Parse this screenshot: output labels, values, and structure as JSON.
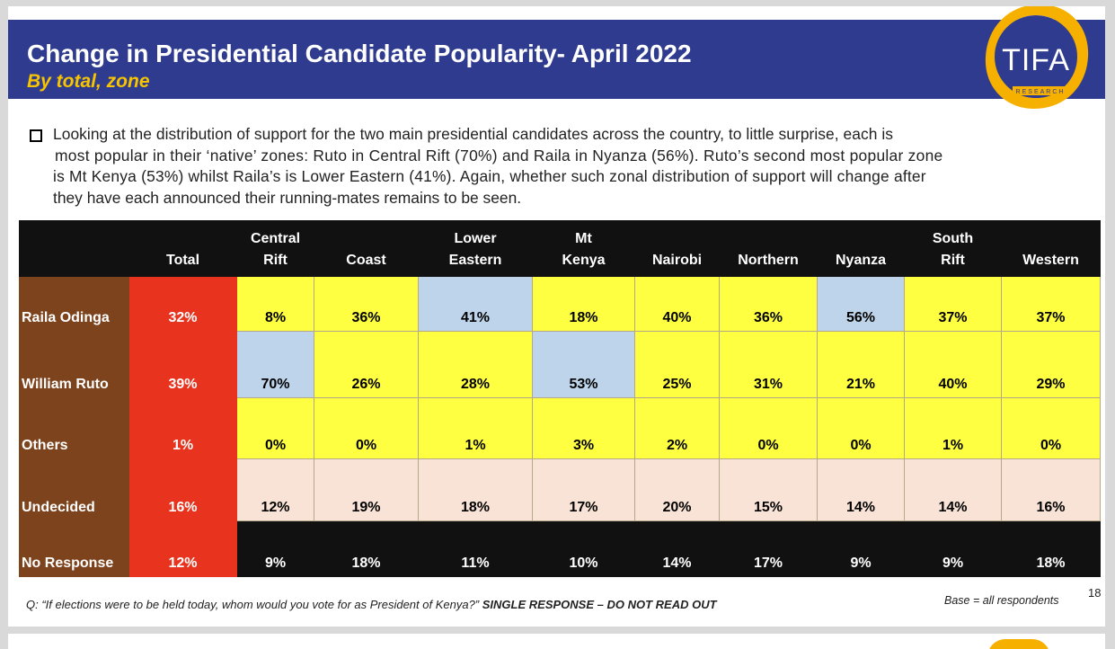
{
  "header": {
    "title": "Change in Presidential Candidate Popularity- April 2022",
    "subtitle": "By total, zone",
    "logo_text": "TIFA",
    "logo_subtext": "RESEARCH"
  },
  "summary": {
    "lines": [
      "Looking at the distribution of support for the two main presidential candidates across the country, to little surprise, each is",
      "most popular in their ‘native’ zones: Ruto in Central Rift (70%) and Raila in Nyanza (56%).  Ruto’s second most popular zone",
      "is Mt Kenya (53%) whilst Raila’s is Lower Eastern (41%). Again, whether such zonal distribution of support will change after",
      "they have each announced their running-mates remains to be seen."
    ]
  },
  "table": {
    "columns": [
      {
        "line1": "",
        "line2": "Total"
      },
      {
        "line1": "Central",
        "line2": "Rift"
      },
      {
        "line1": "",
        "line2": "Coast"
      },
      {
        "line1": "Lower",
        "line2": "Eastern"
      },
      {
        "line1": "Mt",
        "line2": "Kenya"
      },
      {
        "line1": "",
        "line2": "Nairobi"
      },
      {
        "line1": "",
        "line2": "Northern"
      },
      {
        "line1": "",
        "line2": "Nyanza"
      },
      {
        "line1": "South",
        "line2": "Rift"
      },
      {
        "line1": "",
        "line2": "Western"
      }
    ],
    "rows": [
      {
        "label": "Raila Odinga",
        "values": [
          "32%",
          "8%",
          "36%",
          "41%",
          "18%",
          "40%",
          "36%",
          "56%",
          "37%",
          "37%"
        ]
      },
      {
        "label": "William Ruto",
        "values": [
          "39%",
          "70%",
          "26%",
          "28%",
          "53%",
          "25%",
          "31%",
          "21%",
          "40%",
          "29%"
        ]
      },
      {
        "label": "Others",
        "values": [
          "1%",
          "0%",
          "0%",
          "1%",
          "3%",
          "2%",
          "0%",
          "0%",
          "1%",
          "0%"
        ]
      },
      {
        "label": "Undecided",
        "values": [
          "16%",
          "12%",
          "19%",
          "18%",
          "17%",
          "20%",
          "15%",
          "14%",
          "14%",
          "16%"
        ]
      },
      {
        "label": "No Response",
        "values": [
          "12%",
          "9%",
          "18%",
          "11%",
          "10%",
          "14%",
          "17%",
          "9%",
          "9%",
          "18%"
        ]
      }
    ],
    "highlighted_cells": [
      {
        "row": "Raila Odinga",
        "column": "Lower Eastern"
      },
      {
        "row": "Raila Odinga",
        "column": "Nyanza"
      },
      {
        "row": "William Ruto",
        "column": "Central Rift"
      },
      {
        "row": "William Ruto",
        "column": "Mt Kenya"
      }
    ]
  },
  "footer": {
    "question": "Q: “If elections were to be held today, whom would you vote for as President of Kenya?”",
    "instruction": "SINGLE RESPONSE – DO NOT READ OUT",
    "base": "Base = all respondents",
    "page_number": "18"
  },
  "colors": {
    "header_bg": "#2f3b8f",
    "subtitle": "#f6c500",
    "row_label_bg": "#7d431c",
    "total_bg": "#e8341e",
    "yellow_cell": "#ffff41",
    "blue_highlight": "#bdd4ea",
    "pink_cell": "#f8e3d6",
    "black_cell": "#111111"
  }
}
